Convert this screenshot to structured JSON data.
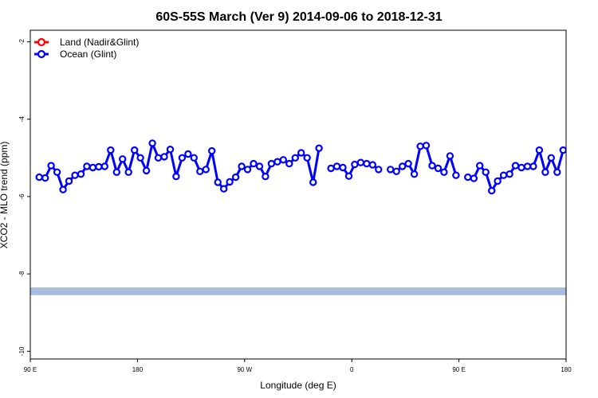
{
  "chart_data": {
    "type": "line",
    "title": "60S-55S March (Ver 9)   2014-09-06 to 2018-12-31",
    "xlabel": "Longitude (deg E)",
    "ylabel": "XCO2 - MLO trend (ppm)",
    "xlim": [
      90,
      450
    ],
    "ylim": [
      -10.2,
      -1.7
    ],
    "x_ticks": [
      90,
      180,
      270,
      360,
      450
    ],
    "x_tick_labels": [
      "90 E",
      "180",
      "90 W",
      "0",
      "90 E",
      "180"
    ],
    "x_tick_values": [
      90,
      180,
      270,
      360,
      450,
      540
    ],
    "y_ticks": [
      -10,
      -8,
      -6,
      -4,
      -2
    ],
    "y_tick_labels": [
      "-10",
      "-8",
      "-6",
      "-4",
      "-2"
    ],
    "grid": false,
    "legend": {
      "placement": "top-left",
      "entries": [
        {
          "name": "Land (Nadir&Glint)",
          "color": "#ff0000"
        },
        {
          "name": "Ocean (Glint)",
          "color": "#0000ff"
        }
      ]
    },
    "series": [
      {
        "name": "Ocean (Glint)",
        "color": "#0000ff",
        "segments": [
          {
            "x": [
              97.5,
              102.5,
              107.5,
              112.5,
              117.5,
              122.5,
              127.5,
              132.5,
              137.5,
              142.5,
              147.5,
              152.5,
              157.5,
              162.5,
              167.5,
              172.5,
              177.5,
              182.5,
              187.5,
              192.5,
              197.5,
              202.5,
              207.5,
              212.5,
              217.5,
              222.5,
              227.5,
              232.5,
              237.5,
              242.5,
              247.5,
              252.5,
              257.5,
              262.5,
              267.5,
              272.5,
              277.5,
              282.5,
              287.5,
              292.5,
              297.5,
              302.5,
              307.5,
              312.5,
              317.5,
              322.5,
              327.5,
              332.5,
              337.5
            ],
            "y": [
              -5.5,
              -5.52,
              -5.2,
              -5.37,
              -5.82,
              -5.6,
              -5.45,
              -5.42,
              -5.22,
              -5.25,
              -5.23,
              -5.22,
              -4.8,
              -5.37,
              -5.03,
              -5.37,
              -4.8,
              -5.0,
              -5.33,
              -4.62,
              -5.0,
              -4.97,
              -4.78,
              -5.48,
              -5.0,
              -4.9,
              -5.0,
              -5.35,
              -5.3,
              -4.82,
              -5.63,
              -5.8,
              -5.62,
              -5.5,
              -5.22,
              -5.3,
              -5.15,
              -5.22,
              -5.48,
              -5.15,
              -5.1,
              -5.05,
              -5.15,
              -5.0,
              -4.87,
              -5.0,
              -5.63,
              -4.75,
              null
            ]
          },
          {
            "x": [
              342.5,
              347.5,
              352.5,
              357.5,
              362.5,
              367.5,
              372.5,
              377.5,
              382.5,
              387.5,
              392.5,
              397.5,
              402.5,
              407.5,
              412.5,
              417.5,
              422.5,
              427.5,
              432.5,
              437.5,
              442.5,
              447.5
            ],
            "y": [
              -5.27,
              -5.22,
              -5.25,
              -5.47,
              -5.17,
              -5.12,
              -5.15,
              -5.18,
              -5.3,
              null,
              -5.3,
              -5.35,
              -5.22,
              -5.15,
              -5.42,
              -4.7,
              -4.68,
              -5.2,
              -5.27,
              -5.37,
              -4.95,
              -5.45
            ]
          },
          {
            "x": [
              457.5,
              462.5,
              467.5,
              472.5,
              477.5,
              482.5,
              487.5,
              492.5,
              497.5,
              502.5,
              507.5,
              512.5,
              517.5,
              522.5,
              527.5,
              532.5,
              537.5
            ],
            "y": [
              -5.5,
              -5.53,
              -5.2,
              -5.37,
              -5.85,
              -5.6,
              -5.45,
              -5.42,
              -5.2,
              -5.25,
              -5.22,
              -5.22,
              -4.8,
              -5.37,
              -5.0,
              -5.37,
              -4.8
            ]
          }
        ]
      }
    ],
    "band": {
      "y_range": [
        -8.55,
        -8.35
      ],
      "color": "#a8bde3"
    }
  }
}
